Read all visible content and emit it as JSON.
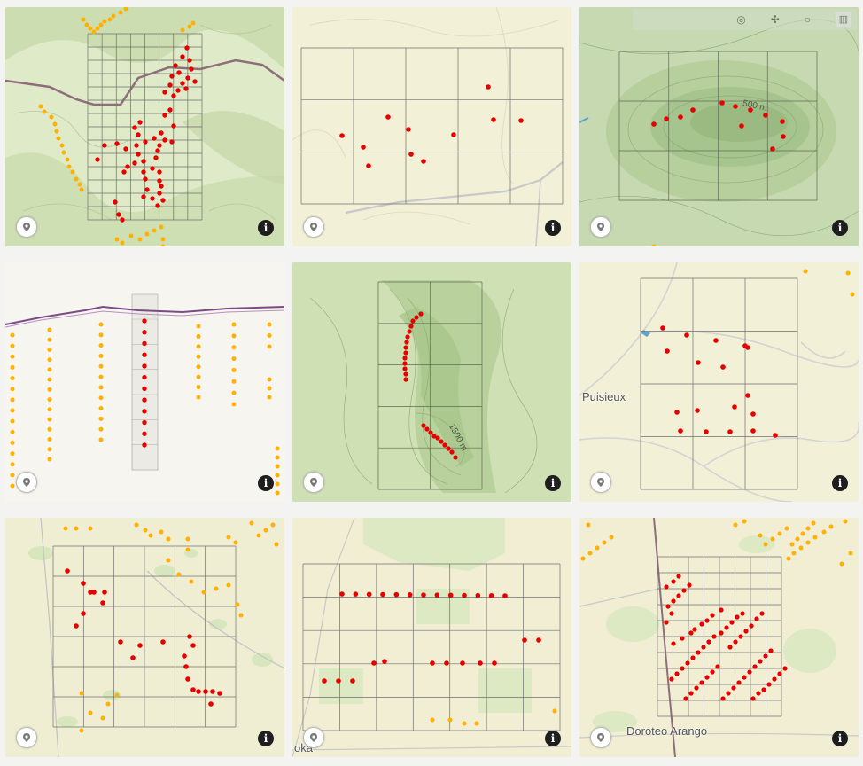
{
  "icons": {
    "badge": "locate-pin-icon",
    "info": "info-icon",
    "toolbar": [
      "ring-icon",
      "move-icon",
      "circle-icon",
      "bar-chart-icon"
    ]
  },
  "info_glyph": "i",
  "colors": {
    "sampled": "#e60000",
    "unsampled": "#ffb000",
    "grid": "#6f6f6f",
    "road": "#8d6e7a",
    "transect": "#7a4c86"
  },
  "tiles": [
    {
      "id": 1,
      "background": "#dfeac8",
      "style": "hills",
      "labels": [],
      "toolbar": false
    },
    {
      "id": 2,
      "background": "#f2f0d6",
      "style": "plain",
      "labels": [],
      "toolbar": false
    },
    {
      "id": 3,
      "background": "#c6d9b0",
      "style": "hills",
      "labels": [
        {
          "text": "500 m"
        }
      ],
      "toolbar": true
    },
    {
      "id": 4,
      "background": "#f6f5ef",
      "style": "blank",
      "labels": [],
      "toolbar": false
    },
    {
      "id": 5,
      "background": "#cfe0b4",
      "style": "hills",
      "labels": [
        {
          "text": "1500 m"
        }
      ],
      "toolbar": false
    },
    {
      "id": 6,
      "background": "#f2f0d6",
      "style": "plain",
      "labels": [
        {
          "text": "Puisieux"
        }
      ],
      "toolbar": false
    },
    {
      "id": 7,
      "background": "#f0eed2",
      "style": "plain",
      "labels": [],
      "toolbar": false
    },
    {
      "id": 8,
      "background": "#f1eed3",
      "style": "plain",
      "labels": [
        {
          "text": "oka"
        }
      ],
      "toolbar": false
    },
    {
      "id": 9,
      "background": "#f1eed3",
      "style": "plain",
      "labels": [
        {
          "text": "Doroteo Arango"
        }
      ],
      "toolbar": false
    }
  ]
}
